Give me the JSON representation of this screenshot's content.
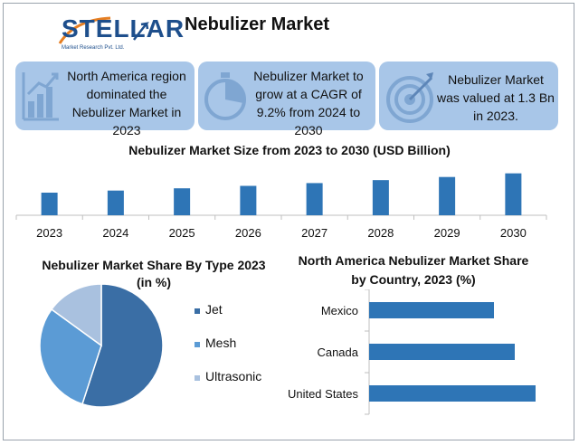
{
  "header": {
    "logo_text": "STELLAR",
    "logo_subtext": "Market Research Pvt. Ltd.",
    "title": "Nebulizer Market"
  },
  "cards": [
    {
      "text": "North America region dominated the Nebulizer Market in 2023",
      "icon": "bar-growth-icon"
    },
    {
      "text": "Nebulizer Market to grow at a CAGR of 9.2% from 2024 to 2030",
      "icon": "stopwatch-icon"
    },
    {
      "text": "Nebulizer Market was valued at 1.3 Bn in 2023.",
      "icon": "target-icon"
    }
  ],
  "colors": {
    "card_bg": "#a8c6e8",
    "bar": "#2e75b6",
    "bar_dark": "#1f5f99",
    "jet": "#3a6ea5",
    "mesh": "#5b9bd5",
    "ultrasonic": "#a9c1df"
  },
  "chart_data": [
    {
      "type": "bar",
      "title": "Nebulizer Market Size from 2023 to 2030 (USD Billion)",
      "categories": [
        "2023",
        "2024",
        "2025",
        "2026",
        "2027",
        "2028",
        "2029",
        "2030"
      ],
      "values": [
        1.3,
        1.42,
        1.55,
        1.69,
        1.85,
        2.02,
        2.2,
        2.41
      ],
      "ylim": [
        0,
        2.6
      ]
    },
    {
      "type": "pie",
      "title": "Nebulizer Market Share By Type 2023 (in %)",
      "labels": [
        "Jet",
        "Mesh",
        "Ultrasonic"
      ],
      "values": [
        55,
        30,
        15
      ],
      "legend": "right"
    },
    {
      "type": "bar",
      "orientation": "horizontal",
      "title": "North America Nebulizer Market Share by Country, 2023 (%)",
      "categories": [
        "Mexico",
        "Canada",
        "United States"
      ],
      "values": [
        12,
        14,
        16
      ],
      "xlim": [
        0,
        20
      ]
    }
  ]
}
